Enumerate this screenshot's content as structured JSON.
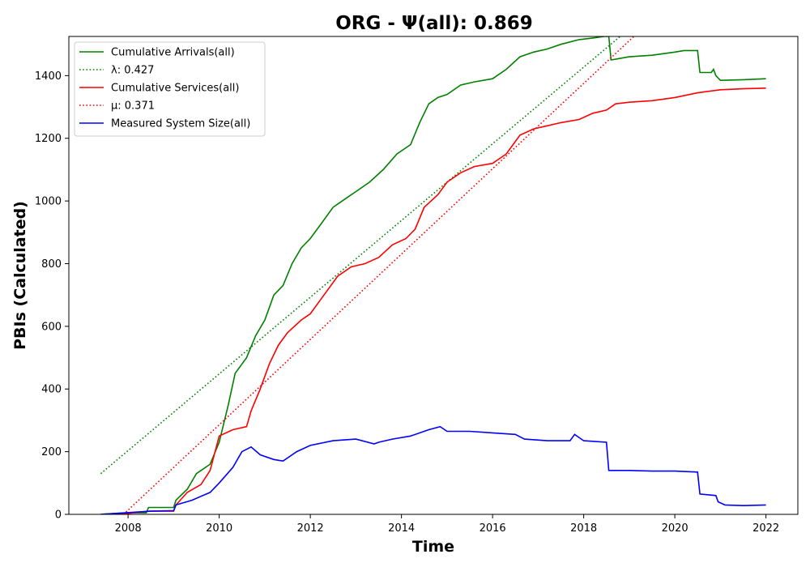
{
  "chart_data": {
    "type": "line",
    "title": "ORG -  Ψ(all): 0.869",
    "xlabel": "Time",
    "ylabel": "PBIs (Calculated)",
    "xlim": [
      2006.7,
      2022.7
    ],
    "ylim": [
      0,
      1525
    ],
    "x_ticks": [
      2008,
      2010,
      2012,
      2014,
      2016,
      2018,
      2020,
      2022
    ],
    "y_ticks": [
      0,
      200,
      400,
      600,
      800,
      1000,
      1200,
      1400
    ],
    "grid": false,
    "legend_position": "top-left",
    "series": [
      {
        "name": "Cumulative Arrivals(all)",
        "style": "solid",
        "color": "#008000",
        "x": [
          2007.4,
          2008.0,
          2008.4,
          2008.45,
          2009.0,
          2009.05,
          2009.3,
          2009.5,
          2009.8,
          2010.0,
          2010.2,
          2010.35,
          2010.6,
          2010.8,
          2011.0,
          2011.2,
          2011.4,
          2011.6,
          2011.8,
          2012.0,
          2012.2,
          2012.5,
          2012.8,
          2013.0,
          2013.3,
          2013.6,
          2013.9,
          2014.2,
          2014.4,
          2014.6,
          2014.8,
          2015.0,
          2015.3,
          2015.6,
          2016.0,
          2016.3,
          2016.6,
          2016.9,
          2017.2,
          2017.5,
          2017.9,
          2018.2,
          2018.45,
          2018.55,
          2018.6,
          2019.0,
          2019.5,
          2020.0,
          2020.2,
          2020.5,
          2020.55,
          2020.8,
          2020.85,
          2020.9,
          2021.0,
          2021.5,
          2022.0
        ],
        "y": [
          0,
          5,
          5,
          22,
          22,
          45,
          80,
          130,
          160,
          230,
          350,
          450,
          500,
          570,
          620,
          700,
          730,
          800,
          850,
          880,
          920,
          980,
          1010,
          1030,
          1060,
          1100,
          1150,
          1180,
          1250,
          1310,
          1330,
          1340,
          1370,
          1380,
          1390,
          1420,
          1460,
          1475,
          1485,
          1500,
          1515,
          1520,
          1525,
          1525,
          1450,
          1460,
          1465,
          1475,
          1480,
          1480,
          1410,
          1410,
          1420,
          1400,
          1385,
          1387,
          1390
        ]
      },
      {
        "name": "λ: 0.427",
        "style": "dotted",
        "color": "#008000",
        "x": [
          2007.4,
          2018.8
        ],
        "y": [
          130,
          1525
        ]
      },
      {
        "name": "Cumulative Services(all)",
        "style": "solid",
        "color": "#ff0000",
        "x": [
          2007.4,
          2008.0,
          2008.45,
          2009.0,
          2009.05,
          2009.3,
          2009.6,
          2009.8,
          2010.0,
          2010.3,
          2010.6,
          2010.7,
          2010.9,
          2011.1,
          2011.3,
          2011.5,
          2011.8,
          2012.0,
          2012.3,
          2012.6,
          2012.9,
          2013.2,
          2013.5,
          2013.8,
          2014.1,
          2014.3,
          2014.5,
          2014.8,
          2015.0,
          2015.3,
          2015.6,
          2016.0,
          2016.3,
          2016.6,
          2016.9,
          2017.2,
          2017.5,
          2017.9,
          2018.2,
          2018.5,
          2018.7,
          2019.0,
          2019.5,
          2020.0,
          2020.5,
          2021.0,
          2021.5,
          2022.0
        ],
        "y": [
          0,
          3,
          10,
          10,
          30,
          70,
          95,
          140,
          250,
          270,
          280,
          330,
          400,
          480,
          540,
          580,
          620,
          640,
          700,
          760,
          790,
          800,
          820,
          860,
          880,
          910,
          980,
          1020,
          1060,
          1090,
          1110,
          1120,
          1150,
          1210,
          1230,
          1240,
          1250,
          1260,
          1280,
          1290,
          1310,
          1315,
          1320,
          1330,
          1345,
          1355,
          1358,
          1360
        ]
      },
      {
        "name": "μ: 0.371",
        "style": "dotted",
        "color": "#ff0000",
        "x": [
          2007.9,
          2019.1
        ],
        "y": [
          0,
          1525
        ]
      },
      {
        "name": "Measured System Size(all)",
        "style": "solid",
        "color": "#0000ff",
        "x": [
          2007.4,
          2008.5,
          2009.0,
          2009.05,
          2009.4,
          2009.8,
          2010.0,
          2010.3,
          2010.5,
          2010.7,
          2010.9,
          2011.2,
          2011.4,
          2011.7,
          2012.0,
          2012.5,
          2013.0,
          2013.4,
          2013.5,
          2013.8,
          2014.2,
          2014.6,
          2014.85,
          2015.0,
          2015.5,
          2016.0,
          2016.5,
          2016.7,
          2017.2,
          2017.7,
          2017.8,
          2018.0,
          2018.5,
          2018.55,
          2019.0,
          2019.5,
          2020.0,
          2020.5,
          2020.55,
          2020.9,
          2020.95,
          2021.1,
          2021.5,
          2022.0
        ],
        "y": [
          0,
          10,
          12,
          30,
          45,
          70,
          100,
          150,
          200,
          215,
          190,
          175,
          170,
          200,
          220,
          235,
          240,
          225,
          230,
          240,
          250,
          270,
          280,
          265,
          265,
          260,
          255,
          240,
          235,
          235,
          255,
          235,
          230,
          140,
          140,
          138,
          138,
          135,
          65,
          60,
          40,
          30,
          28,
          30
        ]
      }
    ]
  }
}
